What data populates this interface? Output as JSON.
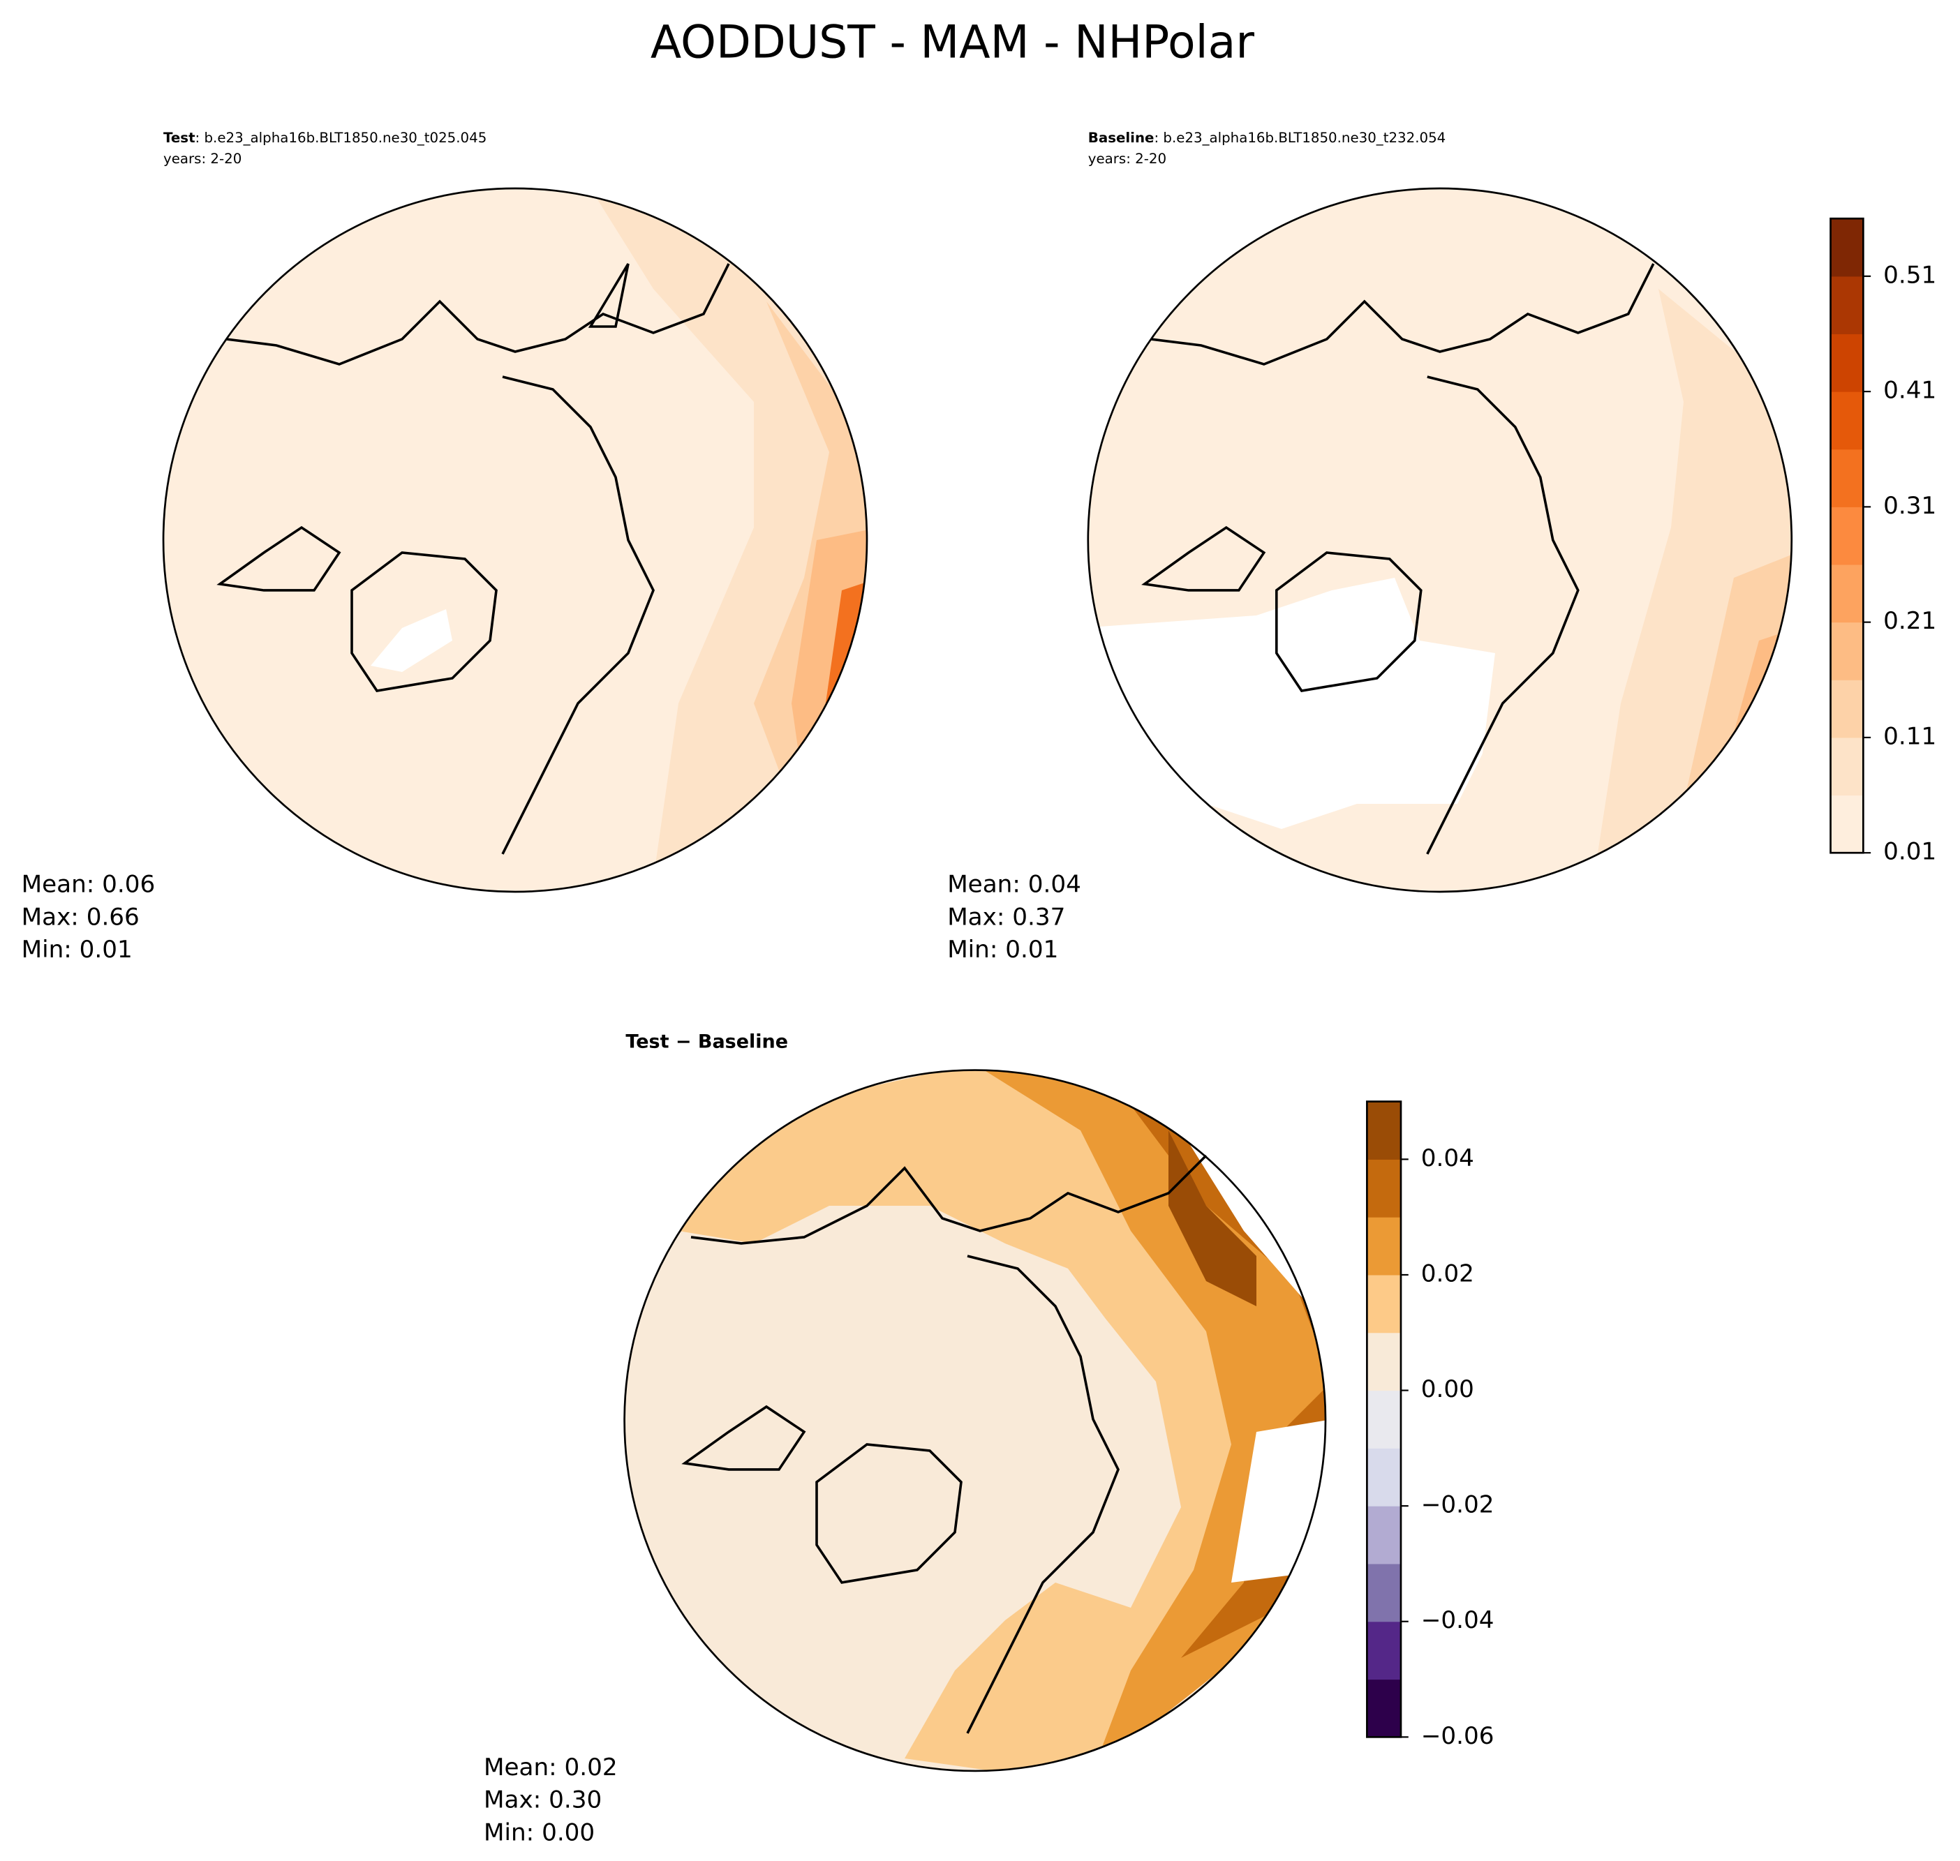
{
  "title": "AODDUST - MAM - NHPolar",
  "panels": [
    {
      "label": "Test",
      "case": ": b.e23_alpha16b.BLT1850.ne30_t025.045",
      "years": "years: 2-20",
      "stats": [
        "Mean:  0.06",
        "Max:  0.66",
        "Min:  0.01"
      ]
    },
    {
      "label": "Baseline",
      "case": ": b.e23_alpha16b.BLT1850.ne30_t232.054",
      "years": "years: 2-20",
      "stats": [
        "Mean:  0.04",
        "Max:  0.37",
        "Min:  0.01"
      ]
    },
    {
      "label": "Test − Baseline",
      "stats": [
        "Mean:  0.02",
        "Max:  0.30",
        "Min:  0.00"
      ]
    }
  ],
  "colorbars": [
    {
      "lim": [
        0.01,
        0.56
      ],
      "ticks": [
        0.01,
        0.11,
        0.21,
        0.31,
        0.41,
        0.51
      ],
      "colors": [
        "#feeedd",
        "#fde3c8",
        "#fdd2a8",
        "#fdbc84",
        "#fda35f",
        "#fc8a3f",
        "#f3711f",
        "#e5590a",
        "#cd4401",
        "#ab3703",
        "#7f2704"
      ]
    },
    {
      "lim": [
        -0.06,
        0.05
      ],
      "ticks": [
        {
          "value": -0.06,
          "label": "−0.06"
        },
        {
          "value": -0.04,
          "label": "−0.04"
        },
        {
          "value": -0.02,
          "label": "−0.02"
        },
        {
          "value": 0,
          "label": "0.00"
        },
        0.02,
        0.04
      ],
      "colors": [
        "#2d004b",
        "#542788",
        "#8073ac",
        "#b2abd2",
        "#d8daeb",
        "#e9e9ee",
        "#f8ead8",
        "#fdca88",
        "#eb9a35",
        "#c46a0e",
        "#9a4c06"
      ]
    }
  ]
}
